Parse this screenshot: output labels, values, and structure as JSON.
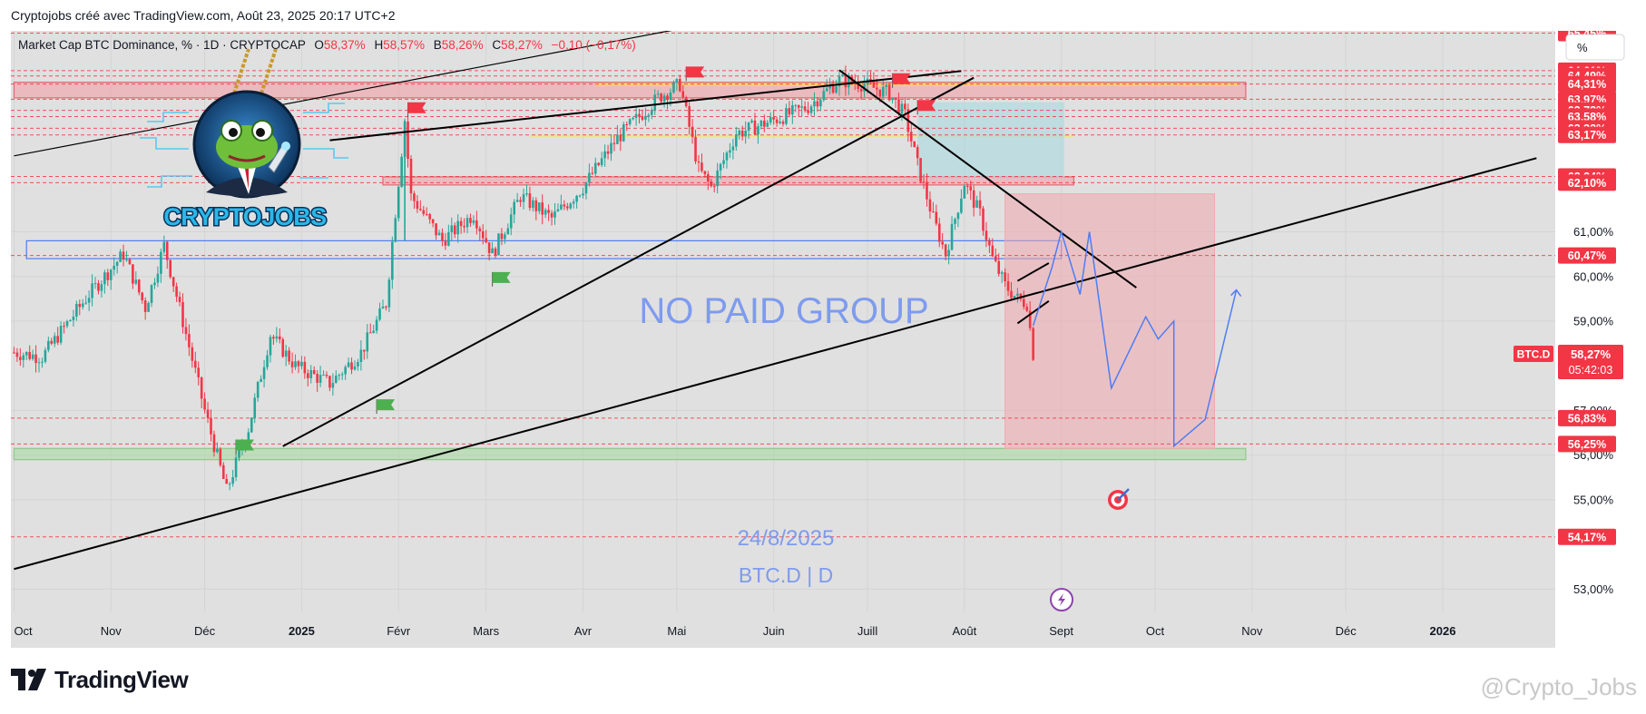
{
  "header": {
    "caption": "Cryptojobs créé avec TradingView.com, Août 23, 2025 20:17 UTC+2"
  },
  "legend": {
    "symbol": "Market Cap BTC Dominance, % · 1D · CRYPTOCAP",
    "o_label": "O",
    "o_value": "58,37%",
    "h_label": "H",
    "h_value": "58,57%",
    "b_label": "B",
    "b_value": "58,26%",
    "c_label": "C",
    "c_value": "58,27%",
    "change": "−0,10 (−0,17%)"
  },
  "scale_button": "%",
  "brand_logo": {
    "text": "CRYPTOJOBS"
  },
  "overlay": {
    "no_paid": "NO PAID GROUP",
    "date_note": "24/8/2025",
    "symbol_note": "BTC.D | D"
  },
  "colors": {
    "bull": "#26a69a",
    "bear": "#f23645",
    "level_line": "#f23645",
    "projection": "#4e7df2",
    "text_blue": "#6c8ef0"
  },
  "footer": {
    "brand": "TradingView",
    "watermark": "@Crypto_Jobs"
  },
  "chart_data": {
    "type": "candlestick",
    "series": [
      {
        "name": "BTC.D"
      }
    ],
    "x_ticks": [
      "Oct",
      "Nov",
      "Déc",
      "2025",
      "Févr",
      "Mars",
      "Avr",
      "Mai",
      "Juin",
      "Juill",
      "Août",
      "Sept",
      "Oct",
      "Nov",
      "Déc",
      "2026"
    ],
    "bold_ticks": [
      "2025",
      "2026"
    ],
    "y_ticks": [
      "61,00%",
      "60,00%",
      "59,00%",
      "57,00%",
      "56,00%",
      "55,00%",
      "53,00%"
    ],
    "y_unit": "%",
    "ylim": [
      52.5,
      65.5
    ],
    "level_labels": [
      "65,45%",
      "64,61%",
      "64,49%",
      "64,31%",
      "63,97%",
      "63,72%",
      "63,58%",
      "63,32%",
      "63,17%",
      "62,24%",
      "62,10%",
      "60,47%",
      "56,83%",
      "56,25%",
      "54,17%"
    ],
    "last_price_tag": "BTC.D",
    "last_price": "58,27%",
    "countdown": "05:42:03",
    "ohlc_last": {
      "open": 58.37,
      "high": 58.57,
      "low": 58.26,
      "close": 58.27
    },
    "price_path": [
      [
        "2024-10-01",
        58.3
      ],
      [
        "2024-10-10",
        58.2
      ],
      [
        "2024-10-25",
        59.6
      ],
      [
        "2024-11-05",
        60.5
      ],
      [
        "2024-11-12",
        59.3
      ],
      [
        "2024-11-18",
        60.7
      ],
      [
        "2024-11-24",
        59.0
      ],
      [
        "2024-12-01",
        57.0
      ],
      [
        "2024-12-08",
        55.2
      ],
      [
        "2024-12-15",
        56.6
      ],
      [
        "2024-12-22",
        58.7
      ],
      [
        "2024-12-30",
        58.0
      ],
      [
        "2025-01-10",
        57.6
      ],
      [
        "2025-01-20",
        58.3
      ],
      [
        "2025-01-28",
        59.4
      ],
      [
        "2025-02-03",
        63.5
      ],
      [
        "2025-02-05",
        61.8
      ],
      [
        "2025-02-15",
        60.8
      ],
      [
        "2025-02-25",
        61.4
      ],
      [
        "2025-03-03",
        60.5
      ],
      [
        "2025-03-12",
        61.8
      ],
      [
        "2025-03-22",
        61.3
      ],
      [
        "2025-04-01",
        62.0
      ],
      [
        "2025-04-12",
        63.1
      ],
      [
        "2025-04-25",
        64.0
      ],
      [
        "2025-05-02",
        64.3
      ],
      [
        "2025-05-08",
        62.4
      ],
      [
        "2025-05-12",
        62.0
      ],
      [
        "2025-05-20",
        63.2
      ],
      [
        "2025-06-01",
        63.5
      ],
      [
        "2025-06-12",
        63.8
      ],
      [
        "2025-06-22",
        64.4
      ],
      [
        "2025-06-30",
        64.3
      ],
      [
        "2025-07-08",
        64.1
      ],
      [
        "2025-07-13",
        63.6
      ],
      [
        "2025-07-17",
        62.5
      ],
      [
        "2025-07-22",
        61.3
      ],
      [
        "2025-07-26",
        60.5
      ],
      [
        "2025-08-01",
        62.1
      ],
      [
        "2025-08-06",
        61.4
      ],
      [
        "2025-08-10",
        60.4
      ],
      [
        "2025-08-14",
        59.8
      ],
      [
        "2025-08-18",
        59.5
      ],
      [
        "2025-08-21",
        59.4
      ],
      [
        "2025-08-23",
        58.27
      ]
    ],
    "projection_path": [
      [
        "2025-08-29",
        60.2
      ],
      [
        "2025-09-01",
        61.0
      ],
      [
        "2025-09-07",
        59.6
      ],
      [
        "2025-09-10",
        61.0
      ],
      [
        "2025-09-17",
        57.5
      ],
      [
        "2025-09-28",
        59.1
      ],
      [
        "2025-10-02",
        58.6
      ],
      [
        "2025-10-07",
        59.0
      ],
      [
        "2025-10-07",
        56.2
      ],
      [
        "2025-10-17",
        56.8
      ],
      [
        "2025-10-27",
        59.7
      ]
    ],
    "zones": [
      {
        "from": "2024-10-01",
        "to": "2025-10-30",
        "low": 64.0,
        "high": 64.35
      },
      {
        "from": "2025-01-27",
        "to": "2025-09-05",
        "low": 62.05,
        "high": 62.23
      },
      {
        "from": "2024-10-05",
        "to": "2025-09-01",
        "low": 60.4,
        "high": 60.8
      },
      {
        "from": "2024-10-01",
        "to": "2025-10-30",
        "low": 55.9,
        "high": 56.15
      }
    ],
    "target_box": {
      "from": "2025-08-14",
      "to": "2025-10-20",
      "low": 56.15,
      "high": 61.85
    },
    "range_box": {
      "from": "2025-07-17",
      "to": "2025-09-02",
      "low": 62.2,
      "high": 63.9
    },
    "trendlines": [
      {
        "from": [
          "2024-10-01",
          53.45
        ],
        "to": [
          "2026-01-31",
          62.65
        ]
      },
      {
        "from": [
          "2024-12-26",
          56.2
        ],
        "to": [
          "2025-08-04",
          64.45
        ]
      },
      {
        "from": [
          "2025-01-10",
          63.05
        ],
        "to": [
          "2025-07-31",
          64.6
        ]
      },
      {
        "from": [
          "2024-10-01",
          62.7
        ],
        "to": [
          "2025-06-05",
          66.0
        ]
      },
      {
        "from": [
          "2025-06-22",
          64.62
        ],
        "to": [
          "2025-09-25",
          59.75
        ]
      },
      {
        "from": [
          "2025-08-18",
          59.9
        ],
        "to": [
          "2025-08-28",
          60.3
        ]
      },
      {
        "from": [
          "2025-08-18",
          58.95
        ],
        "to": [
          "2025-08-28",
          59.45
        ]
      }
    ],
    "grid": true,
    "legend_position": "top-left"
  }
}
